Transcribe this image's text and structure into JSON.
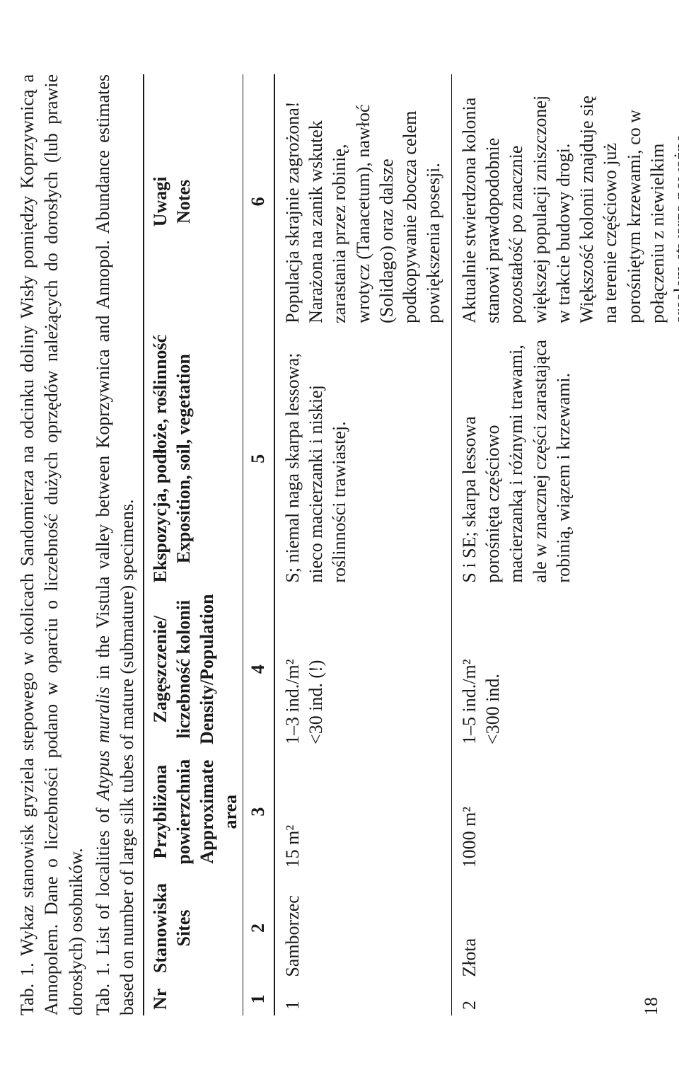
{
  "pageNumber": "18",
  "caption_pl_pre": "Tab. 1. Wykaz stanowisk gryziela stepowego w okolicach Sandomierza na odcinku doliny Wisły pomiędzy Koprzywnicą a Annopolem. Dane o liczebności podano w oparciu o liczebność dużych oprzędów należących do dorosłych (lub prawie dorosłych) osobników.",
  "caption_en_a": "Tab. 1. List of localities of ",
  "caption_en_species": "Atypus muralis",
  "caption_en_b": " in the Vistula valley between Koprzywnica and Annopol. Abundance estimates based on number of large silk tubes of mature (submature) specimens.",
  "headers": {
    "nr": "Nr",
    "site_pl": "Stanowiska",
    "site_en": "Sites",
    "area_pl": "Przybliżona",
    "area_pl2": "powierzchnia",
    "area_en": "Approximate",
    "area_en2": "area",
    "dens_pl": "Zagęszczenie/",
    "dens_pl2": "liczebność kolonii",
    "dens_en": "Density/Population",
    "exp_pl": "Ekspozycja, podłoże, roślinność",
    "exp_en": "Exposition, soil, vegetation",
    "notes_pl": "Uwagi",
    "notes_en": "Notes",
    "n1": "1",
    "n2": "2",
    "n3": "3",
    "n4": "4",
    "n5": "5",
    "n6": "6"
  },
  "rows": [
    {
      "nr": "1",
      "site": "Samborzec",
      "area": "15 m²",
      "density_l1": "1–3 ind./m²",
      "density_l2": "<30 ind. (!)",
      "exposition": "S; niemal naga skarpa lessowa; nieco macierzanki i niskiej roślinności trawiastej.",
      "notes_a": "Populacja skrajnie zagrożona! Narażona na zanik wskutek zarastania przez robinię, wrotycz (",
      "notes_it1": "Tanacetum",
      "notes_b": "), nawłoć (",
      "notes_it2": "Solidago",
      "notes_c": ") oraz dalsze podkopywanie zbocza celem powiększenia posesji."
    },
    {
      "nr": "2",
      "site": "Złota",
      "area": "1000 m²",
      "density_l1": "1–5 ind./m²",
      "density_l2": "<300 ind.",
      "exposition": "S i SE; skarpa lessowa porośnięta częściowo macierzanką i różnymi trawami, ale w znacznej części zarastająca robinią, wiązem i krzewami.",
      "notes_a": "Aktualnie stwierdzona kolonia stanowi prawdopodobnie pozostałość po znacznie większej populacji zniszczonej w trakcie budowy drogi. Większość kolonii znajduje się na terenie częściowo już porośniętym krzewami, co w połączeniu z niewielkim areałem stwarza poważne zagrożenie dla jej przetrwania w ciągu najbliższych kilku lat.",
      "notes_it1": "",
      "notes_b": "",
      "notes_it2": "",
      "notes_c": ""
    }
  ]
}
